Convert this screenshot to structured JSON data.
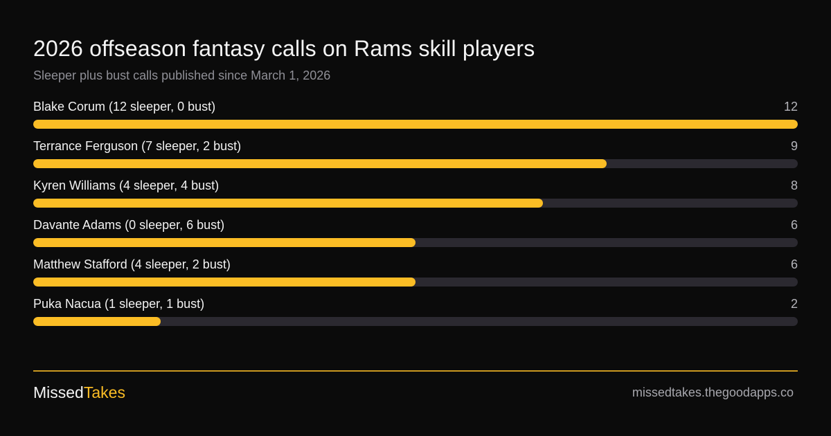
{
  "header": {
    "title": "2026 offseason fantasy calls on Rams skill players",
    "subtitle": "Sleeper plus bust calls published since March 1, 2026"
  },
  "chart_data": {
    "type": "bar",
    "orientation": "horizontal",
    "title": "2026 offseason fantasy calls on Rams skill players",
    "subtitle": "Sleeper plus bust calls published since March 1, 2026",
    "xlim": [
      0,
      12
    ],
    "categories": [
      "Blake Corum (12 sleeper, 0 bust)",
      "Terrance Ferguson (7 sleeper, 2 bust)",
      "Kyren Williams (4 sleeper, 4 bust)",
      "Davante Adams (0 sleeper, 6 bust)",
      "Matthew Stafford (4 sleeper, 2 bust)",
      "Puka Nacua (1 sleeper, 1 bust)"
    ],
    "values": [
      12,
      9,
      8,
      6,
      6,
      2
    ],
    "value_labels": [
      "12",
      "9",
      "8",
      "6",
      "6",
      "2"
    ],
    "colors": {
      "fill": "#fbbd25",
      "track": "#2b2930"
    }
  },
  "footer": {
    "brand_part1": "Missed",
    "brand_part2": "Takes",
    "url": "missedtakes.thegoodapps.co",
    "accent": "#fbbd25"
  }
}
